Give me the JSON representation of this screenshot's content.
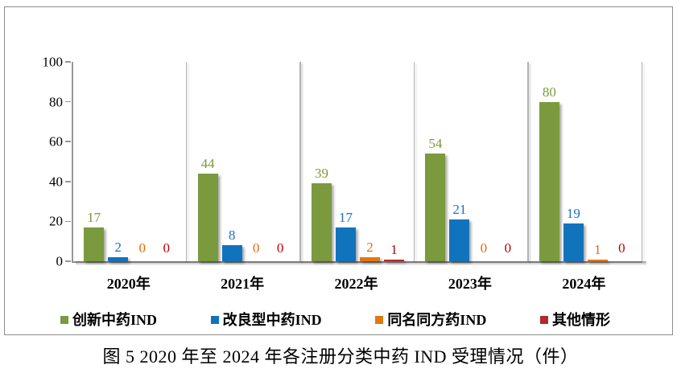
{
  "figure": {
    "caption": "图 5  2020 年至 2024 年各注册分类中药 IND 受理情况（件）"
  },
  "chart_data": {
    "type": "bar",
    "title": "图 5  2020 年至 2024 年各注册分类中药 IND 受理情况（件）",
    "categories": [
      "2020年",
      "2021年",
      "2022年",
      "2023年",
      "2024年"
    ],
    "series": [
      {
        "name": "创新中药IND",
        "color": "#7a9a3d",
        "label_color": "#7a9a3d",
        "values": [
          17,
          44,
          39,
          54,
          80
        ]
      },
      {
        "name": "改良型中药IND",
        "color": "#1273bd",
        "label_color": "#1f6fbe",
        "values": [
          2,
          8,
          17,
          21,
          19
        ]
      },
      {
        "name": "同名同方药IND",
        "color": "#e2770f",
        "label_color": "#e36c09",
        "values": [
          0,
          0,
          2,
          0,
          1
        ]
      },
      {
        "name": "其他情形",
        "color": "#b02a2e",
        "label_color": "#c00000",
        "values": [
          0,
          0,
          1,
          0,
          0
        ]
      }
    ],
    "ylim": [
      0,
      100
    ],
    "yticks": [
      0,
      20,
      40,
      60,
      80,
      100
    ],
    "xlabel": "",
    "ylabel": "",
    "grid": "vertical category separators only",
    "legend_position": "bottom"
  }
}
